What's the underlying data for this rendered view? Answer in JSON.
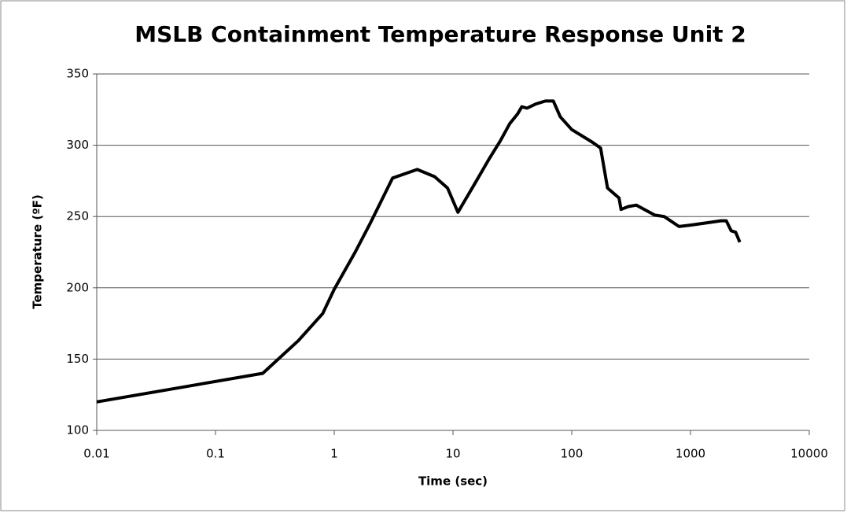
{
  "chart_data": {
    "type": "line",
    "title": "MSLB Containment Temperature Response Unit 2",
    "xlabel": "Time (sec)",
    "ylabel": "Temperature (ºF)",
    "xscale": "log",
    "xlim": [
      0.01,
      10000
    ],
    "xticks": [
      0.01,
      0.1,
      1,
      10,
      100,
      1000,
      10000
    ],
    "ylim": [
      100,
      350
    ],
    "yticks": [
      100,
      150,
      200,
      250,
      300,
      350
    ],
    "grid": true,
    "series": [
      {
        "name": "Temperature",
        "color": "#000000",
        "x": [
          0.01,
          0.25,
          0.5,
          0.8,
          1,
          1.5,
          2,
          3.1,
          5,
          7,
          9,
          11,
          15,
          20,
          25,
          30,
          35,
          38,
          42,
          50,
          60,
          70,
          80,
          100,
          150,
          175,
          200,
          250,
          260,
          300,
          350,
          500,
          600,
          800,
          1000,
          1500,
          1800,
          2000,
          2200,
          2400,
          2600
        ],
        "values": [
          120,
          140,
          163,
          182,
          199,
          225,
          245,
          277,
          283,
          278,
          270,
          253,
          272,
          290,
          303,
          315,
          322,
          327,
          326,
          329,
          331,
          331,
          320,
          311,
          302,
          298,
          270,
          263,
          255,
          257,
          258,
          251,
          250,
          243,
          244,
          246,
          247,
          247,
          240,
          239,
          232
        ]
      }
    ]
  }
}
